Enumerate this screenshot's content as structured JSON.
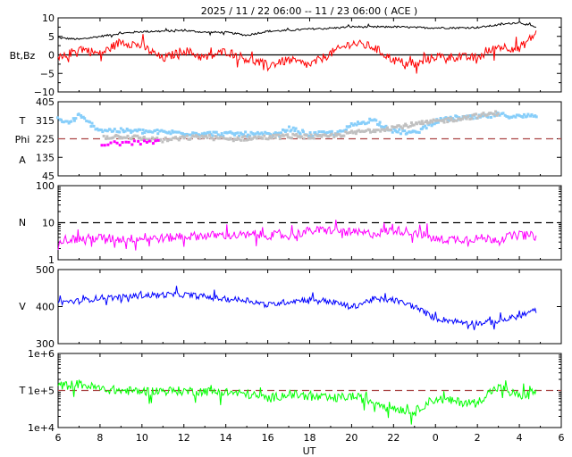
{
  "chart_data": {
    "title": "2025 / 11 / 22   06:00 -- 11 / 23   06:00 ( ACE )",
    "xlabel": "UT",
    "x_range_hours": [
      6,
      30
    ],
    "x_ticks": [
      {
        "h": 6,
        "label": "6"
      },
      {
        "h": 8,
        "label": "8"
      },
      {
        "h": 10,
        "label": "10"
      },
      {
        "h": 12,
        "label": "12"
      },
      {
        "h": 14,
        "label": "14"
      },
      {
        "h": 16,
        "label": "16"
      },
      {
        "h": 18,
        "label": "18"
      },
      {
        "h": 20,
        "label": "20"
      },
      {
        "h": 22,
        "label": "22"
      },
      {
        "h": 24,
        "label": "0"
      },
      {
        "h": 26,
        "label": "2"
      },
      {
        "h": 28,
        "label": "4"
      },
      {
        "h": 30,
        "label": "6"
      }
    ],
    "panels": [
      {
        "id": "mag",
        "type": "line",
        "ylabel": [
          "Bt,Bz"
        ],
        "ylim": [
          -10,
          10
        ],
        "scale": "linear",
        "y_ticks": [
          "10",
          "5",
          "0",
          "−5",
          "−10"
        ],
        "tick_values": [
          10,
          5,
          0,
          -5,
          -10
        ],
        "ref_line": {
          "value": 0,
          "style": "solid",
          "color": "#000000"
        },
        "series": [
          {
            "name": "Bt",
            "color": "#000000",
            "points": [
              [
                6,
                4.6
              ],
              [
                7,
                4.2
              ],
              [
                8,
                5.0
              ],
              [
                9,
                5.8
              ],
              [
                10,
                6.3
              ],
              [
                11,
                6.4
              ],
              [
                12,
                6.6
              ],
              [
                13,
                6.1
              ],
              [
                14,
                6.1
              ],
              [
                15,
                5.3
              ],
              [
                16,
                6.4
              ],
              [
                17,
                6.6
              ],
              [
                18,
                7.0
              ],
              [
                19,
                7.2
              ],
              [
                20,
                7.6
              ],
              [
                21,
                7.5
              ],
              [
                22,
                7.6
              ],
              [
                23,
                7.4
              ],
              [
                24,
                7.3
              ],
              [
                25,
                7.3
              ],
              [
                26,
                7.4
              ],
              [
                27,
                8.1
              ],
              [
                28,
                8.8
              ],
              [
                28.8,
                7.4
              ]
            ]
          },
          {
            "name": "Bz",
            "color": "#ff0000",
            "points": [
              [
                6,
                -1.6
              ],
              [
                7,
                1.9
              ],
              [
                8,
                0.2
              ],
              [
                9,
                3.6
              ],
              [
                10,
                2.4
              ],
              [
                11,
                -1.1
              ],
              [
                12,
                1.3
              ],
              [
                13,
                -0.9
              ],
              [
                14,
                1.0
              ],
              [
                15,
                -1.1
              ],
              [
                16,
                -2.8
              ],
              [
                17,
                -1.4
              ],
              [
                18,
                -2.8
              ],
              [
                19,
                0.4
              ],
              [
                20,
                3.2
              ],
              [
                21,
                2.2
              ],
              [
                22,
                -1.4
              ],
              [
                23,
                -2.9
              ],
              [
                24,
                -0.4
              ],
              [
                25,
                -0.6
              ],
              [
                26,
                -0.8
              ],
              [
                27,
                2.3
              ],
              [
                28,
                1.7
              ],
              [
                28.8,
                5.8
              ]
            ]
          }
        ]
      },
      {
        "id": "phi",
        "type": "scatter",
        "ylabel": [
          "T",
          "Phi",
          "A"
        ],
        "ylim": [
          45,
          405
        ],
        "scale": "linear",
        "y_ticks": [
          "405",
          "315",
          "225",
          "135",
          "45"
        ],
        "tick_values": [
          405,
          315,
          225,
          135,
          45
        ],
        "ref_line": {
          "value": 225,
          "style": "dashed",
          "color": "#aa4444"
        },
        "series": [
          {
            "name": "Phi (away)",
            "color": "#87cefa",
            "points": [
              [
                6,
                322
              ],
              [
                6.5,
                300
              ],
              [
                7,
                338
              ],
              [
                7.5,
                300
              ],
              [
                8,
                268
              ],
              [
                13,
                250
              ],
              [
                16.5,
                245
              ],
              [
                17,
                275
              ],
              [
                18,
                246
              ],
              [
                19.5,
                255
              ],
              [
                20,
                290
              ],
              [
                21,
                318
              ],
              [
                22,
                263
              ],
              [
                23,
                252
              ],
              [
                24,
                310
              ],
              [
                25,
                327
              ],
              [
                26,
                328
              ],
              [
                27,
                342
              ],
              [
                28,
                332
              ],
              [
                28.8,
                340
              ]
            ]
          },
          {
            "name": "Phi (toward)",
            "color": "#c0c0c0",
            "points": [
              [
                8.2,
                233
              ],
              [
                9,
                238
              ],
              [
                10,
                228
              ],
              [
                11,
                218
              ],
              [
                12,
                228
              ],
              [
                13,
                236
              ],
              [
                14,
                222
              ],
              [
                15,
                228
              ],
              [
                16,
                232
              ],
              [
                17,
                238
              ],
              [
                18,
                236
              ],
              [
                18.5,
                232
              ],
              [
                27,
                350
              ]
            ]
          },
          {
            "name": "Phi (other)",
            "color": "#ff00ff",
            "points": [
              [
                8.1,
                200
              ],
              [
                10.8,
                210
              ]
            ]
          }
        ]
      },
      {
        "id": "density",
        "type": "line",
        "ylabel": [
          "N"
        ],
        "ylim": [
          1,
          100
        ],
        "scale": "log",
        "y_ticks": [
          "100",
          "10",
          "1"
        ],
        "tick_values": [
          100,
          10,
          1
        ],
        "ref_line": {
          "value": 10,
          "style": "dashed",
          "color": "#000000"
        },
        "series": [
          {
            "name": "N",
            "color": "#ff00ff",
            "points": [
              [
                6,
                3.6
              ],
              [
                7,
                3.6
              ],
              [
                8,
                3.9
              ],
              [
                9,
                3.6
              ],
              [
                10,
                3.8
              ],
              [
                11,
                3.8
              ],
              [
                12,
                4.2
              ],
              [
                13,
                4.5
              ],
              [
                14,
                4.6
              ],
              [
                15,
                4.5
              ],
              [
                16,
                4.6
              ],
              [
                17,
                4.4
              ],
              [
                18,
                6.0
              ],
              [
                19,
                6.3
              ],
              [
                20,
                5.4
              ],
              [
                21,
                5.0
              ],
              [
                22,
                6.3
              ],
              [
                23,
                5.6
              ],
              [
                24,
                3.5
              ],
              [
                25,
                3.6
              ],
              [
                26,
                3.8
              ],
              [
                27,
                3.6
              ],
              [
                28,
                4.7
              ],
              [
                28.8,
                4.3
              ]
            ]
          }
        ]
      },
      {
        "id": "speed",
        "type": "line",
        "ylabel": [
          "V"
        ],
        "ylim": [
          300,
          500
        ],
        "scale": "linear",
        "y_ticks": [
          "500",
          "400",
          "300"
        ],
        "tick_values": [
          500,
          400,
          300
        ],
        "ref_line": null,
        "series": [
          {
            "name": "V",
            "color": "#0000ff",
            "points": [
              [
                6,
                412
              ],
              [
                7,
                415
              ],
              [
                8,
                424
              ],
              [
                9,
                425
              ],
              [
                10,
                430
              ],
              [
                11,
                432
              ],
              [
                12,
                432
              ],
              [
                13,
                427
              ],
              [
                14,
                420
              ],
              [
                15,
                418
              ],
              [
                16,
                404
              ],
              [
                17,
                414
              ],
              [
                18,
                420
              ],
              [
                19,
                414
              ],
              [
                20,
                398
              ],
              [
                21,
                420
              ],
              [
                22,
                418
              ],
              [
                23,
                400
              ],
              [
                24,
                368
              ],
              [
                25,
                360
              ],
              [
                26,
                355
              ],
              [
                27,
                360
              ],
              [
                28,
                375
              ],
              [
                28.8,
                390
              ]
            ]
          }
        ]
      },
      {
        "id": "temperature",
        "type": "line",
        "ylabel": [
          "T"
        ],
        "ylim": [
          10000,
          1000000
        ],
        "scale": "log",
        "y_ticks": [
          "1e+6",
          "1e+5",
          "1e+4"
        ],
        "tick_values": [
          1000000,
          100000,
          10000
        ],
        "ref_line": {
          "value": 100000,
          "style": "dashed",
          "color": "#aa4444"
        },
        "series": [
          {
            "name": "T",
            "color": "#00ff00",
            "points": [
              [
                6,
                130000
              ],
              [
                7,
                150000
              ],
              [
                8,
                110000
              ],
              [
                9,
                100000
              ],
              [
                10,
                95000
              ],
              [
                11,
                98000
              ],
              [
                12,
                97000
              ],
              [
                13,
                95000
              ],
              [
                14,
                90000
              ],
              [
                15,
                80000
              ],
              [
                16,
                60000
              ],
              [
                17,
                80000
              ],
              [
                18,
                70000
              ],
              [
                19,
                60000
              ],
              [
                20,
                70000
              ],
              [
                21,
                50000
              ],
              [
                22,
                35000
              ],
              [
                23,
                25000
              ],
              [
                24,
                60000
              ],
              [
                25,
                50000
              ],
              [
                26,
                45000
              ],
              [
                27,
                120000
              ],
              [
                28,
                70000
              ],
              [
                28.8,
                95000
              ]
            ]
          }
        ]
      }
    ]
  }
}
